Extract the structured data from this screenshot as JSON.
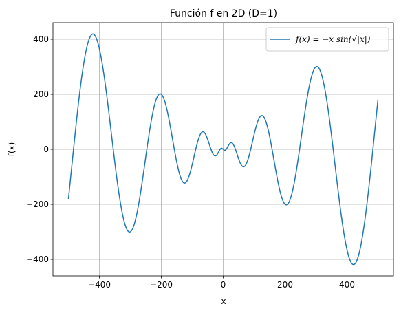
{
  "chart_data": {
    "type": "line",
    "title": "Función f en 2D (D=1)",
    "xlabel": "x",
    "ylabel": "f(x)",
    "xlim": [
      -550,
      550
    ],
    "ylim": [
      -460,
      460
    ],
    "xticks": [
      -400,
      -200,
      0,
      200,
      400
    ],
    "yticks": [
      -400,
      -200,
      0,
      200,
      400
    ],
    "xtick_labels": [
      "−400",
      "−200",
      "0",
      "200",
      "400"
    ],
    "ytick_labels": [
      "−400",
      "−200",
      "0",
      "200",
      "400"
    ],
    "grid": true,
    "legend": "top-right",
    "series": [
      {
        "name": "f(x) = −x sin(√|x|)",
        "color": "#1f77b4",
        "x_range": [
          -500,
          500
        ],
        "formula": "-x*sin(sqrt(|x|))"
      }
    ]
  }
}
